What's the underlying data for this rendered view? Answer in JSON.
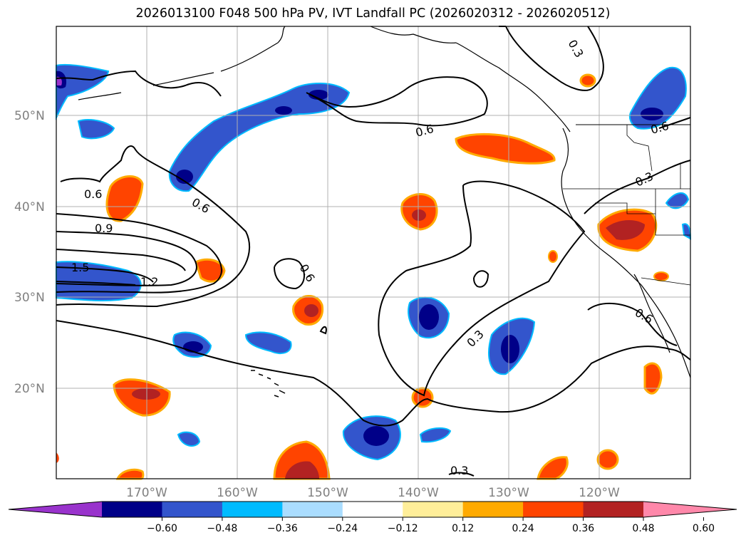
{
  "title": "2026013100 F048 500 hPa PV, IVT Landfall PC (2026020312 - 2026020512)",
  "lat_labels": [
    "50°N",
    "40°N",
    "30°N",
    "20°N"
  ],
  "lon_labels": [
    "170°W",
    "160°W",
    "150°W",
    "140°W",
    "130°W",
    "120°W"
  ],
  "contour_labels": [
    "0.6",
    "0.9",
    "1.5",
    "1.2",
    "0.6",
    "0.6",
    "0.6",
    "0.3",
    "0.3",
    "0.3",
    "0.6",
    "0.6",
    "0.3"
  ],
  "colorbar": {
    "ticks": [
      "−0.60",
      "−0.48",
      "−0.36",
      "−0.24",
      "−0.12",
      "0.12",
      "0.24",
      "0.36",
      "0.48",
      "0.60"
    ],
    "colors": [
      "#9933cc",
      "#000088",
      "#3355cc",
      "#00bbff",
      "#aaddff",
      "#ffffff",
      "#ffee99",
      "#ffaa00",
      "#ff4400",
      "#b22222",
      "#ff88aa"
    ]
  }
}
